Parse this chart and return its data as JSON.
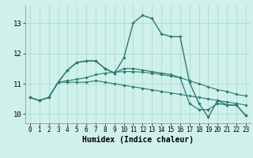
{
  "bg_color": "#cff0eb",
  "grid_color": "#a8ddd7",
  "line_color": "#2d7a6e",
  "xlabel": "Humidex (Indice chaleur)",
  "xlim": [
    -0.5,
    23.5
  ],
  "ylim": [
    9.7,
    13.6
  ],
  "yticks": [
    10,
    11,
    12,
    13
  ],
  "xticks": [
    0,
    1,
    2,
    3,
    4,
    5,
    6,
    7,
    8,
    9,
    10,
    11,
    12,
    13,
    14,
    15,
    16,
    17,
    18,
    19,
    20,
    21,
    22,
    23
  ],
  "series_main": {
    "x": [
      0,
      1,
      2,
      3,
      4,
      5,
      6,
      7,
      8,
      9,
      10,
      11,
      12,
      13,
      14,
      15,
      16,
      17,
      18,
      19,
      20,
      21,
      22,
      23
    ],
    "y": [
      10.55,
      10.45,
      10.55,
      11.05,
      11.45,
      11.7,
      11.75,
      11.75,
      11.5,
      11.35,
      11.85,
      13.0,
      13.25,
      13.15,
      12.65,
      12.55,
      12.55,
      11.05,
      10.35,
      9.9,
      10.45,
      10.3,
      10.3,
      9.95
    ]
  },
  "series_mid": {
    "x": [
      2,
      3,
      4,
      5,
      6,
      7,
      8,
      9,
      10,
      11,
      12,
      13,
      14,
      15,
      16,
      17,
      18,
      19,
      20,
      21,
      22,
      23
    ],
    "y": [
      10.55,
      11.05,
      11.45,
      11.7,
      11.75,
      11.75,
      11.5,
      11.35,
      11.5,
      11.5,
      11.45,
      11.4,
      11.35,
      11.3,
      11.2,
      10.35,
      10.15,
      10.15,
      10.35,
      10.3,
      10.3,
      9.95
    ]
  },
  "series_lin1": {
    "x": [
      0,
      1,
      2,
      3,
      4,
      5,
      6,
      7,
      8,
      9,
      10,
      11,
      12,
      13,
      14,
      15,
      16,
      17,
      18,
      19,
      20,
      21,
      22,
      23
    ],
    "y": [
      10.55,
      10.45,
      10.55,
      11.05,
      11.05,
      11.05,
      11.05,
      11.1,
      11.05,
      11.0,
      10.95,
      10.9,
      10.85,
      10.8,
      10.75,
      10.7,
      10.65,
      10.6,
      10.55,
      10.5,
      10.45,
      10.4,
      10.35,
      10.3
    ]
  },
  "series_lin2": {
    "x": [
      0,
      1,
      2,
      3,
      4,
      5,
      6,
      7,
      8,
      9,
      10,
      11,
      12,
      13,
      14,
      15,
      16,
      17,
      18,
      19,
      20,
      21,
      22,
      23
    ],
    "y": [
      10.55,
      10.45,
      10.55,
      11.05,
      11.1,
      11.15,
      11.2,
      11.3,
      11.35,
      11.38,
      11.4,
      11.4,
      11.38,
      11.35,
      11.3,
      11.25,
      11.2,
      11.1,
      11.0,
      10.9,
      10.8,
      10.75,
      10.65,
      10.6
    ]
  }
}
